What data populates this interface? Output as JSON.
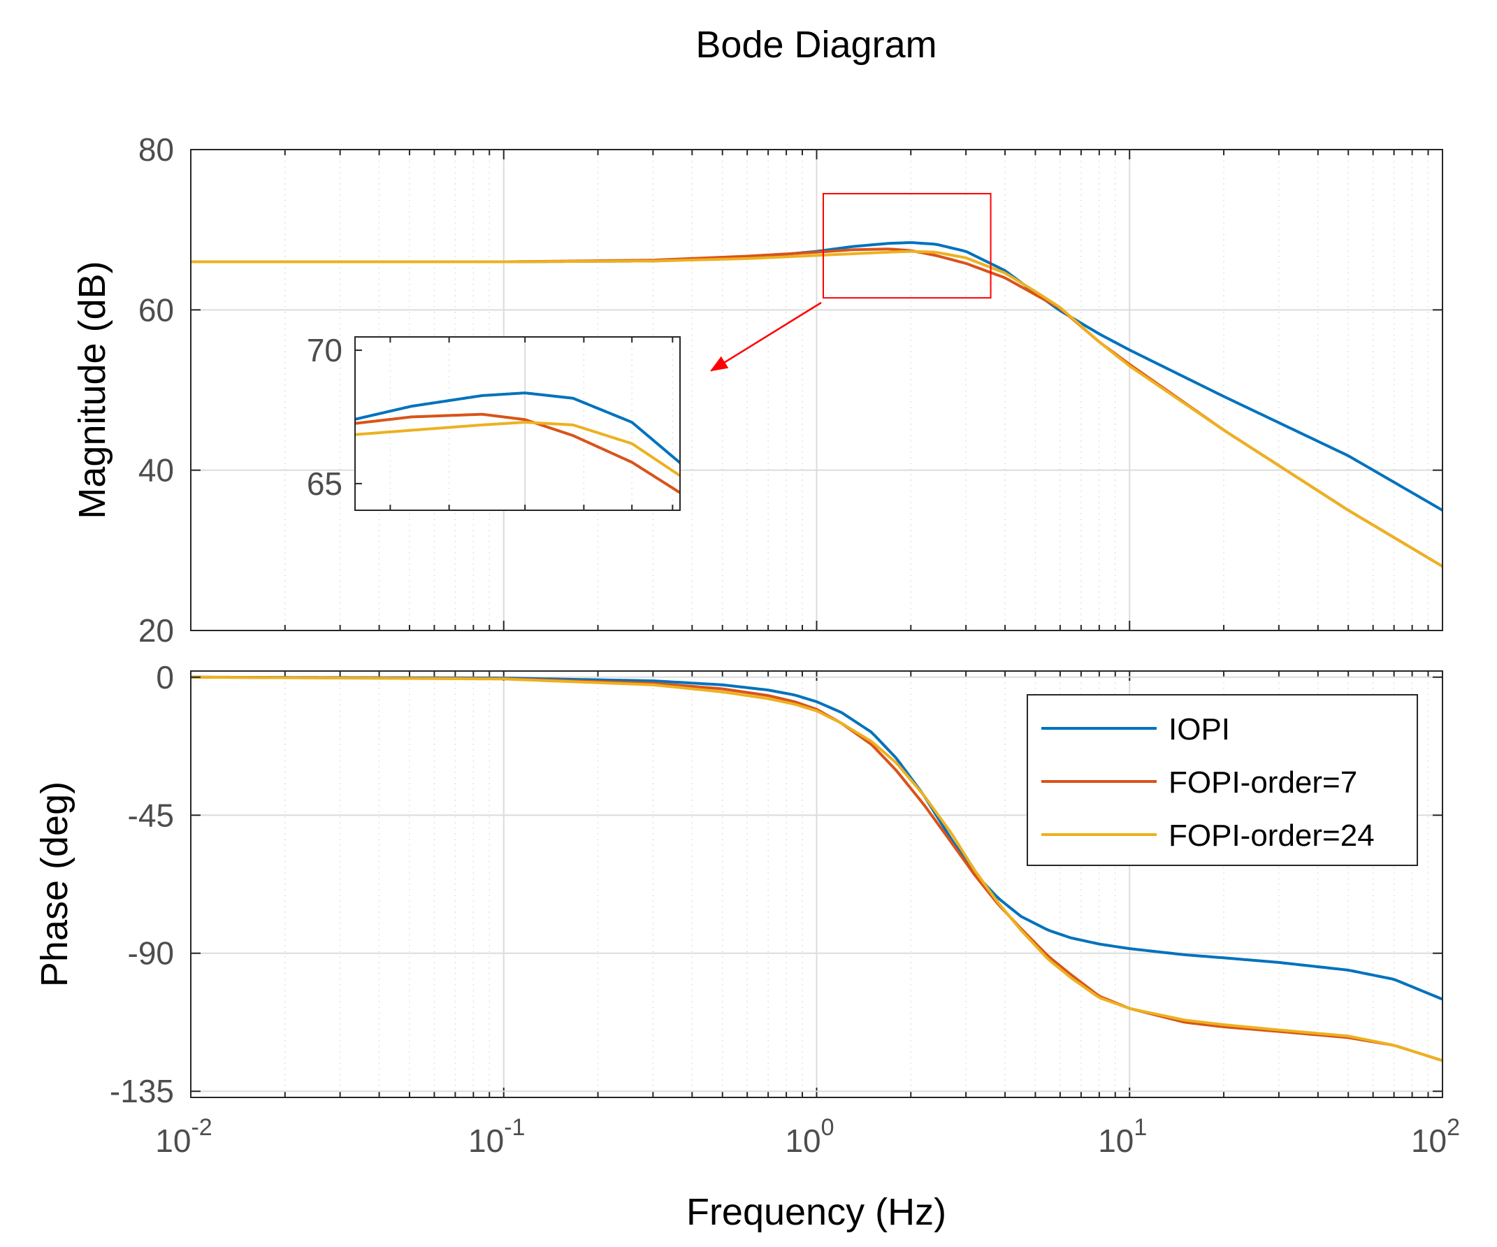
{
  "chart_data": {
    "type": "line",
    "title": "Bode Diagram",
    "xlabel": "Frequency  (Hz)",
    "xscale": "log",
    "xlim": [
      0.01,
      100
    ],
    "x_tick_labels": [
      {
        "base": "10",
        "exp": "-2"
      },
      {
        "base": "10",
        "exp": "-1"
      },
      {
        "base": "10",
        "exp": "0"
      },
      {
        "base": "10",
        "exp": "1"
      },
      {
        "base": "10",
        "exp": "2"
      }
    ],
    "x_tick_values": [
      0.01,
      0.1,
      1,
      10,
      100
    ],
    "grid": true,
    "legend": {
      "location": "top-right of phase plot",
      "entries": [
        "IOPI",
        "FOPI-order=7",
        "FOPI-order=24"
      ]
    },
    "colors": {
      "IOPI": "#0072BD",
      "FOPI-order=7": "#D95319",
      "FOPI-order=24": "#EDB120",
      "zoom_box": "#FF0000"
    },
    "magnitude": {
      "ylabel": "Magnitude (dB)",
      "ylim": [
        20,
        80
      ],
      "yticks": [
        "80",
        "60",
        "40",
        "20"
      ],
      "ytick_values": [
        80,
        60,
        40,
        20
      ],
      "series": [
        {
          "name": "IOPI",
          "x": [
            0.01,
            0.1,
            0.3,
            0.6,
            1.0,
            1.3,
            1.7,
            2.0,
            2.4,
            3.0,
            4.0,
            5.0,
            6.0,
            8.0,
            10,
            20,
            50,
            100
          ],
          "y": [
            66,
            66,
            66.1,
            66.5,
            67.3,
            67.9,
            68.3,
            68.4,
            68.2,
            67.3,
            64.9,
            62.1,
            59.9,
            57.0,
            55.0,
            49.2,
            41.8,
            35.0
          ]
        },
        {
          "name": "FOPI-order=7",
          "x": [
            0.01,
            0.1,
            0.3,
            0.6,
            1.0,
            1.3,
            1.7,
            2.0,
            2.4,
            3.0,
            4.0,
            5.0,
            6.0,
            8.0,
            10,
            20,
            50,
            100
          ],
          "y": [
            66,
            66,
            66.2,
            66.7,
            67.2,
            67.5,
            67.6,
            67.4,
            66.8,
            65.8,
            64.0,
            61.9,
            60.2,
            56.0,
            53.2,
            45.0,
            35.0,
            28.0
          ]
        },
        {
          "name": "FOPI-order=24",
          "x": [
            0.01,
            0.1,
            0.3,
            0.6,
            1.0,
            1.3,
            1.7,
            2.0,
            2.4,
            3.0,
            4.0,
            5.0,
            6.0,
            8.0,
            10,
            20,
            50,
            100
          ],
          "y": [
            66,
            66,
            66.1,
            66.4,
            66.8,
            67.0,
            67.2,
            67.3,
            67.2,
            66.5,
            64.6,
            62.3,
            60.3,
            56.0,
            53.0,
            45.0,
            35.0,
            28.0
          ]
        }
      ],
      "zoom_region": {
        "x": [
          1.05,
          3.6
        ],
        "y": [
          61.5,
          74.5
        ]
      }
    },
    "inset": {
      "ylim": [
        64,
        70.5
      ],
      "yticks": [
        "70",
        "65"
      ],
      "ytick_values": [
        70,
        65
      ],
      "xlim": [
        1.05,
        3.6
      ]
    },
    "phase": {
      "ylabel": "Phase (deg)",
      "ylim": [
        -137,
        2
      ],
      "yticks": [
        "0",
        "-45",
        "-90",
        "-135"
      ],
      "ytick_values": [
        0,
        -45,
        -90,
        -135
      ],
      "series": [
        {
          "name": "IOPI",
          "x": [
            0.01,
            0.1,
            0.3,
            0.5,
            0.7,
            0.85,
            1.0,
            1.2,
            1.5,
            1.8,
            2.2,
            2.7,
            3.2,
            3.8,
            4.5,
            5.5,
            6.5,
            8.0,
            10,
            15,
            20,
            30,
            50,
            70,
            100
          ],
          "y": [
            0,
            -0.3,
            -1.2,
            -2.5,
            -4.2,
            -5.8,
            -8.0,
            -11.5,
            -18.0,
            -26.5,
            -38.5,
            -53.0,
            -64.0,
            -72.0,
            -78.0,
            -82.5,
            -85.0,
            -87.0,
            -88.5,
            -90.5,
            -91.5,
            -93.0,
            -95.5,
            -98.5,
            -105
          ]
        },
        {
          "name": "FOPI-order=7",
          "x": [
            0.01,
            0.1,
            0.3,
            0.5,
            0.7,
            0.85,
            1.0,
            1.2,
            1.5,
            1.8,
            2.2,
            2.7,
            3.2,
            3.8,
            4.5,
            5.5,
            6.5,
            8.0,
            10,
            15,
            20,
            30,
            50,
            70,
            100
          ],
          "y": [
            0,
            -0.5,
            -2.0,
            -3.8,
            -6.0,
            -8.0,
            -10.5,
            -15.0,
            -22.0,
            -30.5,
            -41.5,
            -54.0,
            -64.5,
            -74.0,
            -82.0,
            -91.0,
            -97.0,
            -104.0,
            -108.0,
            -112.5,
            -114.0,
            -115.5,
            -117.5,
            -120.0,
            -125
          ]
        },
        {
          "name": "FOPI-order=24",
          "x": [
            0.01,
            0.1,
            0.3,
            0.5,
            0.7,
            0.85,
            1.0,
            1.2,
            1.5,
            1.8,
            2.2,
            2.7,
            3.2,
            3.8,
            4.5,
            5.5,
            6.5,
            8.0,
            10,
            15,
            20,
            30,
            50,
            70,
            100
          ],
          "y": [
            0,
            -0.6,
            -2.5,
            -4.8,
            -7.0,
            -8.8,
            -11.0,
            -15.0,
            -21.0,
            -28.0,
            -38.5,
            -51.0,
            -63.0,
            -73.5,
            -82.5,
            -92.0,
            -98.0,
            -104.5,
            -108.0,
            -111.8,
            -113.3,
            -115.0,
            -117.0,
            -120.0,
            -125
          ]
        }
      ]
    }
  }
}
